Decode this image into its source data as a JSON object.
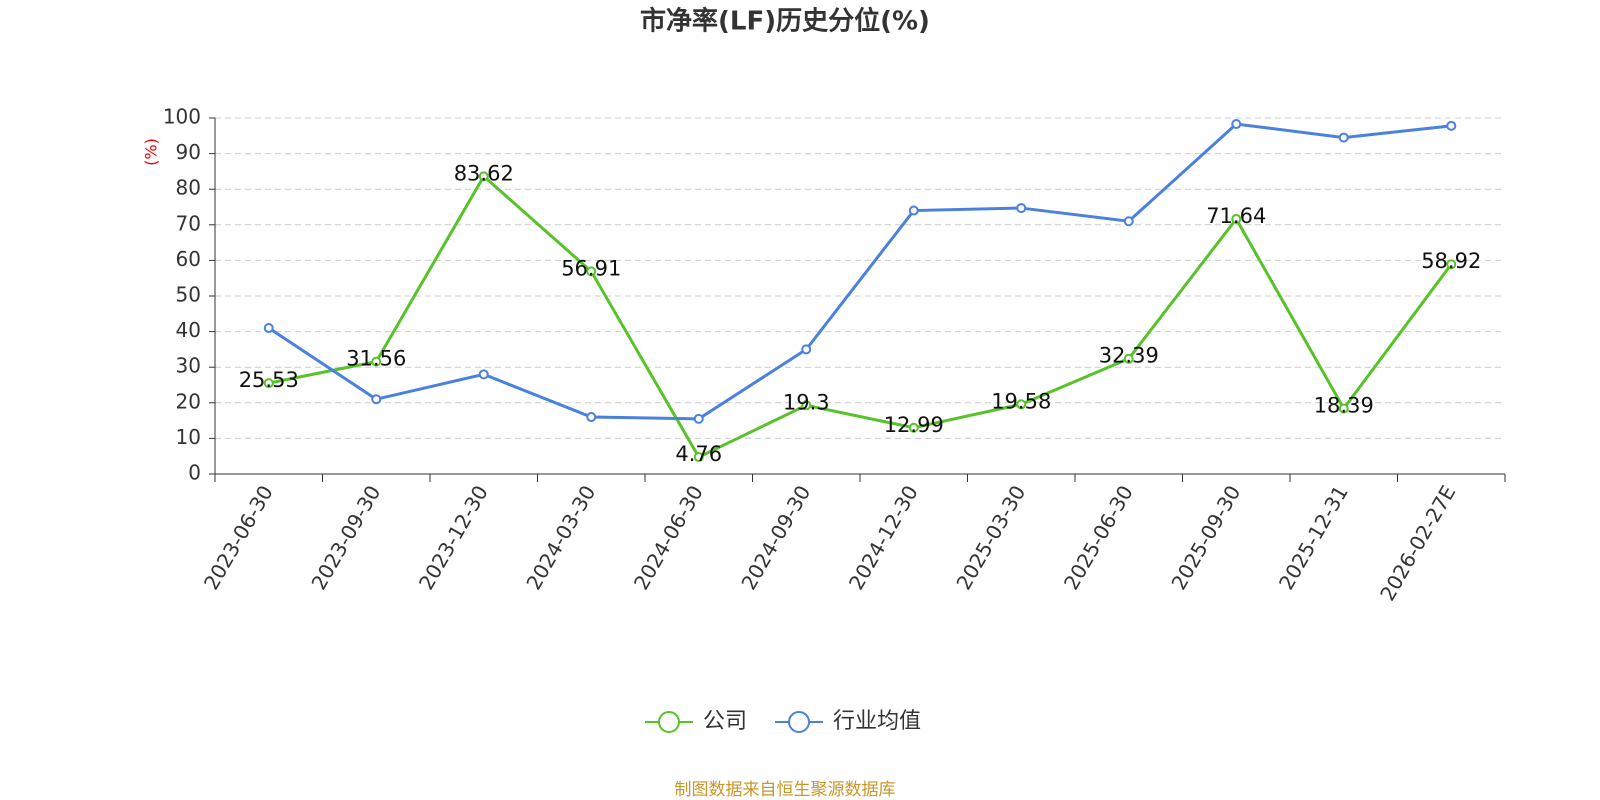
{
  "chart_data": {
    "type": "line",
    "title": "市净率(LF)历史分位(%)",
    "y_label": "(%)",
    "categories": [
      "2023-06-30",
      "2023-09-30",
      "2023-12-30",
      "2024-03-30",
      "2024-06-30",
      "2024-09-30",
      "2024-12-30",
      "2025-03-30",
      "2025-06-30",
      "2025-09-30",
      "2025-12-31",
      "2026-02-27E"
    ],
    "series": [
      {
        "name": "公司",
        "color": "#58c22a",
        "values": [
          25.53,
          31.56,
          83.62,
          56.91,
          4.76,
          19.3,
          12.99,
          19.58,
          32.39,
          71.64,
          18.39,
          58.92
        ],
        "labels": true
      },
      {
        "name": "行业均值",
        "color": "#4a80de",
        "values": [
          41,
          21,
          28,
          16,
          15.5,
          35,
          74,
          74.7,
          71,
          98.3,
          94.5,
          97.8
        ]
      }
    ],
    "ylim": [
      0,
      100
    ],
    "yticks": [
      0,
      10,
      20,
      30,
      40,
      50,
      60,
      70,
      80,
      90,
      100
    ],
    "grid": true,
    "legend": "bottom",
    "source": "制图数据来自恒生聚源数据库"
  }
}
